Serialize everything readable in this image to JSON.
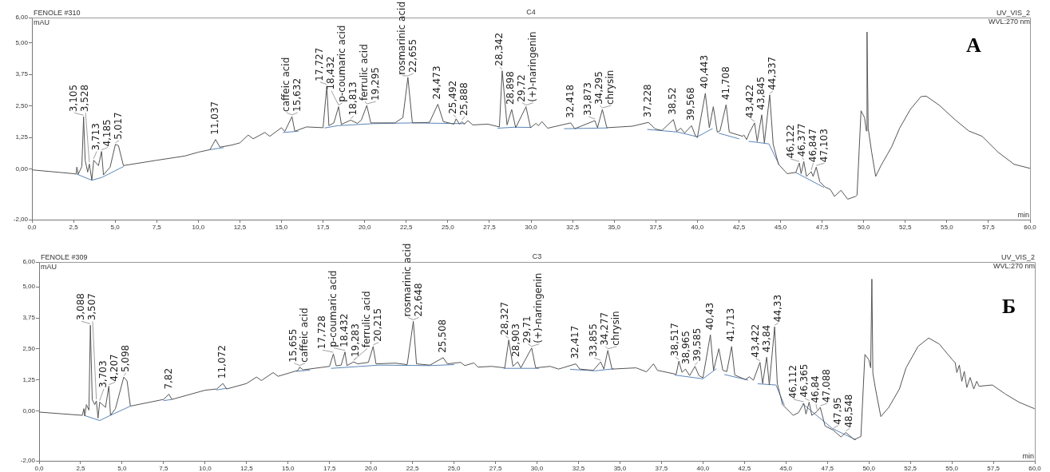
{
  "chart_data": [
    {
      "type": "line",
      "title": "C4",
      "subtitle": "FENOLE #310",
      "xlabel": "min",
      "ylabel": "mAU",
      "xlim": [
        0,
        60
      ],
      "xticks": [
        {
          "value": 0,
          "label": "0,0"
        },
        {
          "value": 2.5,
          "label": "2,5"
        },
        {
          "value": 5,
          "label": "5,0"
        },
        {
          "value": 7.5,
          "label": "7,5"
        },
        {
          "value": 10,
          "label": "10,0"
        },
        {
          "value": 12.5,
          "label": "12,5"
        },
        {
          "value": 15,
          "label": "15,0"
        },
        {
          "value": 17.5,
          "label": "17,5"
        },
        {
          "value": 20,
          "label": "20,0"
        },
        {
          "value": 22.5,
          "label": "22,5"
        },
        {
          "value": 25,
          "label": "25,0"
        },
        {
          "value": 27.5,
          "label": "27,5"
        },
        {
          "value": 30,
          "label": "30,0"
        },
        {
          "value": 32.5,
          "label": "32,5"
        },
        {
          "value": 35,
          "label": "35,0"
        },
        {
          "value": 37.5,
          "label": "37,5"
        },
        {
          "value": 40,
          "label": "40,0"
        },
        {
          "value": 42.5,
          "label": "42,5"
        },
        {
          "value": 45,
          "label": "45,0"
        },
        {
          "value": 47.5,
          "label": "47,5"
        },
        {
          "value": 50,
          "label": "50,0"
        },
        {
          "value": 52.5,
          "label": "52,5"
        },
        {
          "value": 55,
          "label": "55,0"
        },
        {
          "value": 57.5,
          "label": "57,5"
        },
        {
          "value": 60,
          "label": "60,0"
        }
      ],
      "ylim": [
        -2,
        6
      ],
      "yticks": [
        {
          "value": -2,
          "label": "-2,00"
        },
        {
          "value": 0,
          "label": "0,00"
        },
        {
          "value": 1.25,
          "label": "1,25"
        },
        {
          "value": 2.5,
          "label": "2,50"
        },
        {
          "value": 3.75,
          "label": "3,75"
        },
        {
          "value": 5,
          "label": "5,00"
        },
        {
          "value": 6,
          "label": "6,00"
        }
      ],
      "series": [
        {
          "color": "#555555",
          "x": [
            0,
            2.5,
            2.65,
            2.7,
            2.78,
            3.0,
            3.105,
            3.2,
            3.35,
            3.45,
            3.6,
            3.713,
            4.0,
            4.185,
            4.3,
            4.7,
            5.017,
            5.2,
            5.5,
            7.5,
            9.2,
            10.0,
            10.7,
            11.037,
            11.3,
            12.0,
            12.5,
            13.0,
            13.3,
            14.0,
            14.3,
            15.0,
            15.2,
            15.632,
            15.8,
            16.5,
            17.5,
            17.727,
            17.85,
            18.15,
            18.432,
            18.6,
            19.16,
            19.56,
            19.8,
            20.13,
            20.37,
            21.82,
            22.3,
            22.6,
            22.87,
            23.9,
            24.4,
            24.73,
            25.37,
            25.5,
            25.7,
            25.85,
            26.0,
            26.2,
            26.5,
            27.4,
            28.1,
            28.27,
            28.56,
            28.84,
            29.08,
            29.7,
            29.97,
            30.3,
            30.45,
            30.66,
            31.0,
            32.39,
            32.63,
            33.84,
            34.0,
            34.29,
            34.56,
            35.37,
            36.1,
            37.06,
            37.47,
            37.87,
            38.56,
            38.76,
            39.0,
            39.24,
            39.65,
            39.9,
            40.0,
            40.48,
            40.72,
            40.96,
            41.2,
            41.36,
            41.73,
            41.92,
            42.72,
            42.8,
            42.96,
            43.12,
            43.44,
            43.6,
            43.87,
            44.03,
            44.35,
            44.56,
            44.88,
            45.4,
            45.92,
            46.13,
            46.24,
            46.4,
            46.56,
            46.85,
            46.96,
            47.15,
            47.36,
            47.68,
            48.0,
            48.24,
            48.64,
            49.04,
            49.52,
            49.6,
            49.84,
            50.05,
            50.16,
            50.2,
            50.27,
            50.48,
            50.72,
            51.04,
            51.68,
            52.16,
            52.8,
            53.44,
            53.76,
            54.56,
            55.52,
            56.32,
            57.12,
            58.08,
            59.04,
            60.0
          ],
          "values": [
            -0.03,
            -0.18,
            -0.2,
            0.08,
            -0.2,
            0.1,
            2.07,
            0.35,
            -0.12,
            0.2,
            -0.44,
            0.35,
            0.14,
            0.7,
            -0.23,
            0.08,
            0.98,
            0.93,
            0.14,
            0.35,
            0.52,
            0.67,
            0.77,
            1.17,
            0.87,
            0.95,
            1.04,
            1.35,
            1.2,
            1.45,
            1.3,
            1.64,
            1.49,
            2.08,
            1.5,
            1.67,
            1.64,
            3.29,
            1.72,
            1.83,
            2.47,
            1.77,
            1.94,
            1.81,
            1.94,
            2.52,
            1.83,
            1.83,
            2.04,
            3.63,
            1.83,
            1.85,
            2.57,
            1.88,
            1.78,
            1.99,
            1.78,
            1.88,
            1.78,
            1.92,
            1.75,
            1.78,
            1.67,
            3.89,
            1.75,
            2.36,
            1.64,
            2.47,
            1.64,
            1.81,
            1.72,
            1.88,
            1.62,
            1.83,
            1.6,
            1.92,
            1.64,
            2.36,
            1.64,
            1.67,
            1.7,
            1.85,
            1.59,
            1.53,
            1.96,
            1.49,
            1.62,
            1.43,
            1.72,
            1.3,
            1.25,
            3.0,
            1.64,
            2.47,
            1.46,
            1.51,
            2.55,
            1.46,
            1.3,
            1.35,
            1.17,
            1.43,
            1.83,
            1.09,
            2.15,
            1.04,
            2.94,
            0.98,
            0.19,
            -0.18,
            -0.13,
            0.24,
            -0.18,
            0.3,
            -0.29,
            -0.1,
            -0.29,
            0.08,
            -0.5,
            -0.71,
            -0.81,
            -1.08,
            -0.84,
            -1.19,
            -1.08,
            -1.03,
            2.31,
            2.04,
            1.51,
            5.43,
            1.62,
            0.67,
            -0.29,
            0.14,
            0.88,
            1.62,
            2.36,
            2.87,
            2.89,
            2.52,
            1.94,
            1.51,
            1.3,
            0.67,
            0.19,
            0.03
          ]
        },
        {
          "color": "#5b86b8",
          "x": [
            2.7,
            3.6,
            4.2,
            5.5,
            8,
            10.7,
            11.5,
            13,
            15.1,
            16.0,
            16.8,
            17.6,
            18.4,
            20.5,
            22.9,
            26.0,
            27,
            28.0,
            29.0,
            30.0,
            31,
            32.0,
            34.6,
            36,
            37.0,
            38.8,
            40.0,
            40.9,
            41.1,
            41.3,
            42.5,
            42.8,
            43.1,
            44.3,
            44.9,
            45.4,
            45.9,
            47.6
          ],
          "values": [
            -0.2,
            -0.44,
            -0.33,
            0.1,
            null,
            0.77,
            0.85,
            null,
            1.45,
            1.5,
            null,
            1.63,
            1.72,
            1.8,
            1.83,
            1.8,
            null,
            1.62,
            1.66,
            1.65,
            null,
            1.6,
            1.63,
            null,
            1.57,
            1.47,
            1.28,
            1.6,
            null,
            1.42,
            1.2,
            null,
            1.1,
            1.0,
            0.2,
            null,
            -0.13,
            -0.72
          ]
        }
      ],
      "annotations": [
        "UV_VIS_2",
        "WVL:270 nm",
        "A",
        {
          "text": "3,105",
          "x": 3.105,
          "y": 2.07
        },
        {
          "text": "3,528",
          "x": 3.45,
          "y": 0.2
        },
        {
          "text": "3,713",
          "x": 3.713,
          "y": 0.35
        },
        {
          "text": "4,185",
          "x": 4.185,
          "y": 0.7
        },
        {
          "text": "5,017",
          "x": 5.017,
          "y": 0.98
        },
        {
          "text": "11,037",
          "x": 11.037,
          "y": 1.17
        },
        {
          "text": "caffeic acid",
          "x": 15.632,
          "y": 2.08
        },
        {
          "text": "15,632",
          "x": 15.632,
          "y": 2.08
        },
        {
          "text": "17,727",
          "x": 17.727,
          "y": 3.29
        },
        {
          "text": "18,432",
          "x": 18.432,
          "y": 2.47
        },
        {
          "text": "p-coumaric acid",
          "x": 18.432,
          "y": 2.47
        },
        {
          "text": "18,813",
          "x": 19.16,
          "y": 1.94
        },
        {
          "text": "ferrulic acid",
          "x": 20.13,
          "y": 2.52
        },
        {
          "text": "19,295",
          "x": 20.13,
          "y": 2.52
        },
        {
          "text": "rosmarinic acid",
          "x": 22.6,
          "y": 3.63
        },
        {
          "text": "22,655",
          "x": 22.6,
          "y": 3.63
        },
        {
          "text": "24,473",
          "x": 24.4,
          "y": 2.57
        },
        {
          "text": "25,492",
          "x": 25.5,
          "y": 1.99
        },
        {
          "text": "25,888",
          "x": 25.85,
          "y": 1.88
        },
        {
          "text": "28,342",
          "x": 28.27,
          "y": 3.89
        },
        {
          "text": "28,898",
          "x": 28.84,
          "y": 2.36
        },
        {
          "text": "29,72",
          "x": 29.7,
          "y": 2.47
        },
        {
          "text": "(+)-naringenin",
          "x": 29.7,
          "y": 2.47
        },
        {
          "text": "32,418",
          "x": 32.39,
          "y": 1.83
        },
        {
          "text": "33,873",
          "x": 33.84,
          "y": 1.92
        },
        {
          "text": "34,295",
          "x": 34.29,
          "y": 2.36
        },
        {
          "text": "chrysin",
          "x": 34.29,
          "y": 2.36
        },
        {
          "text": "37,228",
          "x": 37.06,
          "y": 1.85
        },
        {
          "text": "38,52",
          "x": 38.56,
          "y": 1.96
        },
        {
          "text": "39,568",
          "x": 39.65,
          "y": 1.72
        },
        {
          "text": "40,443",
          "x": 40.48,
          "y": 3.0
        },
        {
          "text": "41,708",
          "x": 41.73,
          "y": 2.55
        },
        {
          "text": "43,422",
          "x": 43.44,
          "y": 1.83
        },
        {
          "text": "43,845",
          "x": 43.87,
          "y": 2.15
        },
        {
          "text": "44,337",
          "x": 44.35,
          "y": 2.94
        },
        {
          "text": "46,122",
          "x": 46.13,
          "y": 0.24
        },
        {
          "text": "46,377",
          "x": 46.4,
          "y": 0.3
        },
        {
          "text": "46,847",
          "x": 46.85,
          "y": -0.1
        },
        {
          "text": "47,103",
          "x": 47.15,
          "y": 0.08
        }
      ]
    },
    {
      "type": "line",
      "title": "C3",
      "subtitle": "FENOLE #309",
      "xlabel": "min",
      "ylabel": "mAU",
      "xlim": [
        0,
        60
      ],
      "xticks": [
        {
          "value": 0,
          "label": "0,0"
        },
        {
          "value": 2.5,
          "label": "2,5"
        },
        {
          "value": 5,
          "label": "5,0"
        },
        {
          "value": 7.5,
          "label": "7,5"
        },
        {
          "value": 10,
          "label": "10,0"
        },
        {
          "value": 12.5,
          "label": "12,5"
        },
        {
          "value": 15,
          "label": "15,0"
        },
        {
          "value": 17.5,
          "label": "17,5"
        },
        {
          "value": 20,
          "label": "20,0"
        },
        {
          "value": 22.5,
          "label": "22,5"
        },
        {
          "value": 25,
          "label": "25,0"
        },
        {
          "value": 27.5,
          "label": "27,5"
        },
        {
          "value": 30,
          "label": "30,0"
        },
        {
          "value": 32.5,
          "label": "32,5"
        },
        {
          "value": 35,
          "label": "35,0"
        },
        {
          "value": 37.5,
          "label": "37,5"
        },
        {
          "value": 40,
          "label": "40,0"
        },
        {
          "value": 42.5,
          "label": "42,5"
        },
        {
          "value": 45,
          "label": "45,0"
        },
        {
          "value": 47.5,
          "label": "47,5"
        },
        {
          "value": 50,
          "label": "50,0"
        },
        {
          "value": 52.5,
          "label": "52,5"
        },
        {
          "value": 55,
          "label": "55,0"
        },
        {
          "value": 57.5,
          "label": "57,5"
        },
        {
          "value": 60,
          "label": "60,0"
        }
      ],
      "ylim": [
        -2,
        6
      ],
      "yticks": [
        {
          "value": -2,
          "label": "-2,00"
        },
        {
          "value": 0,
          "label": "0,00"
        },
        {
          "value": 1.25,
          "label": "1,25"
        },
        {
          "value": 2.5,
          "label": "2,50"
        },
        {
          "value": 3.75,
          "label": "3,75"
        },
        {
          "value": 5,
          "label": "5,00"
        },
        {
          "value": 6,
          "label": "6,00"
        }
      ],
      "series": [
        {
          "color": "#555555",
          "x": [
            0,
            2.6,
            2.7,
            2.75,
            2.85,
            3.0,
            3.088,
            3.2,
            3.35,
            3.45,
            3.55,
            3.65,
            4.0,
            4.2,
            4.3,
            4.6,
            5.1,
            5.3,
            5.5,
            7.5,
            7.82,
            8.0,
            10.0,
            10.7,
            11.072,
            11.3,
            12.5,
            13.1,
            13.4,
            14.1,
            14.4,
            15.6,
            15.7,
            15.9,
            17.5,
            17.73,
            17.9,
            18.2,
            18.43,
            18.55,
            18.95,
            19.2,
            19.84,
            20.13,
            20.3,
            21.45,
            22.18,
            22.55,
            22.74,
            23.55,
            24.35,
            24.6,
            25.4,
            25.65,
            26.2,
            26.45,
            27.26,
            28.06,
            28.3,
            28.55,
            28.84,
            29.03,
            29.68,
            29.92,
            30.8,
            31.3,
            32.34,
            32.58,
            33.39,
            33.84,
            34.03,
            34.27,
            34.52,
            35.97,
            36.6,
            37.02,
            37.26,
            38.39,
            38.55,
            38.74,
            38.95,
            39.2,
            39.52,
            39.76,
            40.0,
            40.45,
            40.64,
            40.96,
            41.2,
            41.44,
            41.73,
            41.92,
            42.56,
            42.8,
            43.04,
            43.44,
            43.6,
            43.84,
            44.0,
            44.32,
            44.48,
            44.8,
            45.44,
            45.76,
            46.08,
            46.21,
            46.4,
            46.56,
            46.88,
            47.07,
            47.36,
            47.84,
            48.32,
            48.61,
            49.12,
            49.52,
            49.76,
            50.0,
            50.11,
            50.18,
            50.24,
            50.4,
            50.72,
            51.2,
            51.84,
            52.24,
            52.96,
            53.6,
            54.24,
            55.04,
            55.2,
            55.3,
            55.45,
            55.6,
            55.75,
            55.9,
            56.1,
            56.32,
            56.5,
            56.64,
            57.44,
            58.24,
            59.04,
            59.97
          ],
          "values": [
            -0.04,
            -0.17,
            0.1,
            -0.19,
            0.26,
            0.04,
            3.45,
            0.47,
            0.26,
            0.41,
            -0.28,
            0.36,
            0.15,
            1.0,
            -0.17,
            0.1,
            1.37,
            1.21,
            0.2,
            0.47,
            0.68,
            0.47,
            0.84,
            0.89,
            1.11,
            0.89,
            1.11,
            1.37,
            1.23,
            1.55,
            1.4,
            1.64,
            1.77,
            1.66,
            1.8,
            2.3,
            1.82,
            1.85,
            2.38,
            1.83,
            1.98,
            1.9,
            1.96,
            2.6,
            1.9,
            1.93,
            1.87,
            3.61,
            1.9,
            1.85,
            2.15,
            1.9,
            1.96,
            1.83,
            1.94,
            1.77,
            1.8,
            1.74,
            2.86,
            1.8,
            1.98,
            1.74,
            2.54,
            1.74,
            1.8,
            1.69,
            1.9,
            1.69,
            1.64,
            1.98,
            1.69,
            2.44,
            1.69,
            1.74,
            1.58,
            1.9,
            1.64,
            1.48,
            2.01,
            1.56,
            1.69,
            1.43,
            1.8,
            1.43,
            1.34,
            3.07,
            1.64,
            2.51,
            1.64,
            1.59,
            2.6,
            1.45,
            1.27,
            1.38,
            1.24,
            1.96,
            1.11,
            2.17,
            1.05,
            3.39,
            1.11,
            0.26,
            -0.17,
            -0.06,
            0.31,
            -0.12,
            0.36,
            -0.17,
            -0.01,
            0.15,
            -0.6,
            -0.76,
            -1.04,
            -0.86,
            -1.15,
            -1.02,
            2.28,
            2.06,
            1.74,
            5.31,
            1.53,
            0.89,
            -0.22,
            0.15,
            0.89,
            1.74,
            2.6,
            2.94,
            2.7,
            2.06,
            1.95,
            1.55,
            1.85,
            1.2,
            1.6,
            0.95,
            1.35,
            0.89,
            1.2,
            1.0,
            1.05,
            0.68,
            0.36,
            0.1
          ]
        },
        {
          "color": "#5b86b8",
          "x": [
            2.7,
            3.65,
            4.3,
            5.5,
            6.5,
            7.5,
            8.0,
            9,
            10.7,
            11.3,
            13,
            15.5,
            16.3,
            17,
            17.6,
            20.5,
            23.5,
            25.0,
            26.5,
            28.0,
            30.1,
            31,
            32.0,
            33.5,
            34.6,
            36,
            38.3,
            40.0,
            40.8,
            41.1,
            41.3,
            42.7,
            43,
            43.3,
            44.4,
            44.9,
            45.4,
            46.0,
            47.8,
            49.2
          ],
          "values": [
            -0.17,
            -0.38,
            -0.17,
            0.2,
            null,
            0.42,
            0.47,
            null,
            0.85,
            0.92,
            null,
            1.6,
            1.65,
            null,
            1.72,
            1.85,
            1.83,
            1.87,
            null,
            1.72,
            1.72,
            null,
            1.68,
            1.62,
            1.7,
            null,
            1.45,
            1.3,
            1.7,
            null,
            1.47,
            1.25,
            null,
            1.1,
            1.05,
            0.25,
            null,
            0.3,
            -0.7,
            -1.15
          ]
        }
      ],
      "annotations": [
        "UV_VIS_2",
        "WVL:270 nm",
        "Б",
        {
          "text": "3,088",
          "x": 3.088,
          "y": 3.45
        },
        {
          "text": "3,507",
          "x": 3.45,
          "y": 0.41
        },
        {
          "text": "3,703",
          "x": 3.65,
          "y": 0.36
        },
        {
          "text": "4,207",
          "x": 4.2,
          "y": 1.0
        },
        {
          "text": "5,098",
          "x": 5.1,
          "y": 1.37
        },
        {
          "text": "7,82",
          "x": 7.82,
          "y": 0.68
        },
        {
          "text": "11,072",
          "x": 11.072,
          "y": 1.11
        },
        {
          "text": "15,655",
          "x": 15.7,
          "y": 1.77
        },
        {
          "text": "caffeic acid",
          "x": 15.7,
          "y": 1.77
        },
        {
          "text": "17,728",
          "x": 17.73,
          "y": 2.3
        },
        {
          "text": "p-coumaric acid",
          "x": 18.43,
          "y": 2.38
        },
        {
          "text": "18,432",
          "x": 18.43,
          "y": 2.38
        },
        {
          "text": "19,283",
          "x": 18.95,
          "y": 1.98
        },
        {
          "text": "ferrulic acid",
          "x": 18.95,
          "y": 1.98
        },
        {
          "text": "20,215",
          "x": 20.13,
          "y": 2.6
        },
        {
          "text": "rosmarinic acid",
          "x": 22.55,
          "y": 3.61
        },
        {
          "text": "22,648",
          "x": 22.55,
          "y": 3.61
        },
        {
          "text": "25,508",
          "x": 24.35,
          "y": 2.15
        },
        {
          "text": "28,327",
          "x": 28.3,
          "y": 2.86
        },
        {
          "text": "28,903",
          "x": 28.84,
          "y": 1.98
        },
        {
          "text": "29,71",
          "x": 29.68,
          "y": 2.54
        },
        {
          "text": "(+)-naringenin",
          "x": 29.68,
          "y": 2.54
        },
        {
          "text": "32,417",
          "x": 32.34,
          "y": 1.9
        },
        {
          "text": "33,855",
          "x": 33.84,
          "y": 1.98
        },
        {
          "text": "34,277",
          "x": 34.27,
          "y": 2.44
        },
        {
          "text": "chrysin",
          "x": 34.27,
          "y": 2.44
        },
        {
          "text": "38,517",
          "x": 38.55,
          "y": 2.01
        },
        {
          "text": "38,965",
          "x": 38.95,
          "y": 1.69
        },
        {
          "text": "39,585",
          "x": 39.52,
          "y": 1.8
        },
        {
          "text": "40,43",
          "x": 40.45,
          "y": 3.07
        },
        {
          "text": "41,713",
          "x": 41.73,
          "y": 2.6
        },
        {
          "text": "43,422",
          "x": 43.44,
          "y": 1.96
        },
        {
          "text": "43,84",
          "x": 43.84,
          "y": 2.17
        },
        {
          "text": "44,33",
          "x": 44.32,
          "y": 3.39
        },
        {
          "text": "46,112",
          "x": 46.08,
          "y": 0.31
        },
        {
          "text": "46,365",
          "x": 46.4,
          "y": 0.36
        },
        {
          "text": "46,84",
          "x": 46.88,
          "y": -0.01
        },
        {
          "text": "47,088",
          "x": 47.07,
          "y": 0.15
        },
        {
          "text": "47,95",
          "x": 47.84,
          "y": -0.76
        },
        {
          "text": "48,548",
          "x": 48.61,
          "y": -0.86
        }
      ]
    }
  ]
}
